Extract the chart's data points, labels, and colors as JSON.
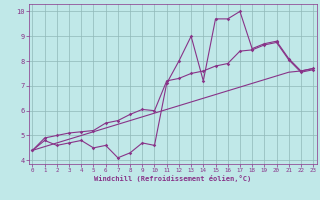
{
  "xlabel": "Windchill (Refroidissement éolien,°C)",
  "bg_color": "#c0e8e8",
  "grid_color": "#90b8b8",
  "line_color": "#883388",
  "x_data": [
    0,
    1,
    2,
    3,
    4,
    5,
    6,
    7,
    8,
    9,
    10,
    11,
    12,
    13,
    14,
    15,
    16,
    17,
    18,
    19,
    20,
    21,
    22,
    23
  ],
  "y_zigzag": [
    4.4,
    4.8,
    4.6,
    4.7,
    4.8,
    4.5,
    4.6,
    4.1,
    4.3,
    4.7,
    4.6,
    7.1,
    8.0,
    9.0,
    7.2,
    9.7,
    9.7,
    10.0,
    8.5,
    8.7,
    8.8,
    8.1,
    7.6,
    7.7
  ],
  "y_line1": [
    4.4,
    4.9,
    5.0,
    5.1,
    5.15,
    5.2,
    5.5,
    5.6,
    5.85,
    6.05,
    6.0,
    7.2,
    7.3,
    7.5,
    7.6,
    7.8,
    7.9,
    8.4,
    8.45,
    8.65,
    8.75,
    8.05,
    7.55,
    7.65
  ],
  "y_line2": [
    4.4,
    4.55,
    4.7,
    4.85,
    5.0,
    5.15,
    5.3,
    5.45,
    5.6,
    5.75,
    5.9,
    6.05,
    6.2,
    6.35,
    6.5,
    6.65,
    6.8,
    6.95,
    7.1,
    7.25,
    7.4,
    7.55,
    7.6,
    7.7
  ],
  "ylim": [
    3.85,
    10.3
  ],
  "xlim": [
    -0.3,
    23.3
  ],
  "yticks": [
    4,
    5,
    6,
    7,
    8,
    9,
    10
  ],
  "xticks": [
    0,
    1,
    2,
    3,
    4,
    5,
    6,
    7,
    8,
    9,
    10,
    11,
    12,
    13,
    14,
    15,
    16,
    17,
    18,
    19,
    20,
    21,
    22,
    23
  ]
}
